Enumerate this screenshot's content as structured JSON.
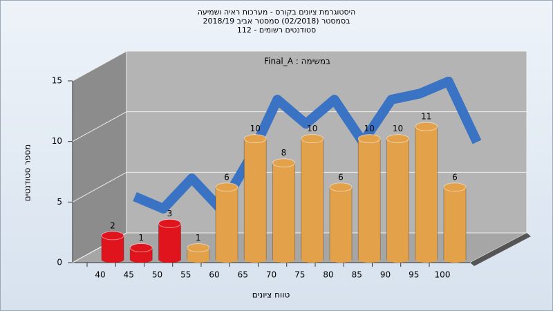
{
  "chart_data": {
    "type": "bar",
    "title": [
      "היסטוגרמת ציונים בקורס - מערכות ראיה ושמיעה",
      "בסמסטר  (02/2018)  סמסטר אביב 2018/19",
      "סטודנטים רשומים - 112"
    ],
    "annotation": "Final_A : במשימה",
    "x_label": "טווח ציונים",
    "y_label": "מספר סטודנטים",
    "categories": [
      "40",
      "45",
      "50",
      "55",
      "60",
      "65",
      "70",
      "75",
      "80",
      "85",
      "90",
      "95",
      "100"
    ],
    "values": [
      2,
      1,
      3,
      1,
      6,
      10,
      8,
      10,
      6,
      10,
      10,
      11,
      6
    ],
    "colors": [
      "#e0141c",
      "#e0141c",
      "#e0141c",
      "#e3a24a",
      "#e3a24a",
      "#e3a24a",
      "#e3a24a",
      "#e3a24a",
      "#e3a24a",
      "#e3a24a",
      "#e3a24a",
      "#e3a24a",
      "#e3a24a"
    ],
    "ribbon": {
      "color": "#3a73c4",
      "values": [
        3,
        2,
        4.5,
        2,
        6,
        11,
        9,
        11,
        7.5,
        11,
        11.5,
        12.5,
        7.5
      ]
    },
    "ylim": [
      0,
      15
    ],
    "yticks": [
      0,
      5,
      10,
      15
    ],
    "grid": true
  }
}
